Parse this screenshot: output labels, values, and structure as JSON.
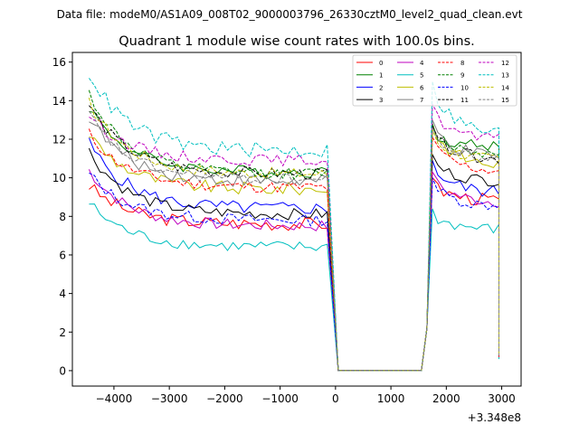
{
  "chart_data": {
    "type": "line",
    "suptitle": "Data file: modeM0/AS1A09_008T02_9000003796_26330cztM0_level2_quad_clean.evt",
    "title": "Quadrant 1 module wise count rates with 100.0s bins.",
    "xlabel": "",
    "ylabel": "",
    "x_offset_label": "+3.348e8",
    "xlim": [
      -4750,
      3350
    ],
    "ylim": [
      -0.8,
      16.5
    ],
    "x_ticks": [
      -4000,
      -3000,
      -2000,
      -1000,
      0,
      1000,
      2000,
      3000
    ],
    "x_tick_labels": [
      "−4000",
      "−3000",
      "−2000",
      "−1000",
      "0",
      "1000",
      "2000",
      "3000"
    ],
    "y_ticks": [
      0,
      2,
      4,
      6,
      8,
      10,
      12,
      14,
      16
    ],
    "y_tick_labels": [
      "0",
      "2",
      "4",
      "6",
      "8",
      "10",
      "12",
      "14",
      "16"
    ],
    "legend_position": "top-right",
    "legend_columns": 4,
    "x_segments": {
      "before_gap_start": -4450,
      "before_gap_step": 100,
      "before_gap_count": 44,
      "gap_x": [
        50,
        1550
      ],
      "after_gap_start": 1650,
      "after_gap_step": 100,
      "after_gap_count": 14,
      "last_x": 2950
    },
    "series": [
      {
        "name": "0",
        "color": "#ff0000",
        "dash": false,
        "base": 7.6,
        "start": 9.6,
        "peak": 9.6,
        "post": 8.8,
        "amp": 0.35,
        "last": 0.7
      },
      {
        "name": "1",
        "color": "#008000",
        "dash": false,
        "base": 10.3,
        "start": 13.7,
        "peak": 12.3,
        "post": 11.6,
        "amp": 0.3,
        "last": 0.8
      },
      {
        "name": "2",
        "color": "#0000ff",
        "dash": false,
        "base": 8.4,
        "start": 11.8,
        "peak": 10.5,
        "post": 9.2,
        "amp": 0.35,
        "last": 0.7
      },
      {
        "name": "3",
        "color": "#000000",
        "dash": false,
        "base": 8.1,
        "start": 11.4,
        "peak": 10.8,
        "post": 9.8,
        "amp": 0.3,
        "last": 0.8
      },
      {
        "name": "4",
        "color": "#bf00bf",
        "dash": false,
        "base": 7.5,
        "start": 10.4,
        "peak": 9.9,
        "post": 8.7,
        "amp": 0.3,
        "last": 0.7
      },
      {
        "name": "5",
        "color": "#00bfbf",
        "dash": false,
        "base": 6.4,
        "start": 8.7,
        "peak": 8.0,
        "post": 7.3,
        "amp": 0.3,
        "last": 0.6
      },
      {
        "name": "6",
        "color": "#bfbf00",
        "dash": false,
        "base": 9.4,
        "start": 12.3,
        "peak": 12.4,
        "post": 10.6,
        "amp": 0.35,
        "last": 0.8
      },
      {
        "name": "7",
        "color": "#808080",
        "dash": false,
        "base": 9.8,
        "start": 13.2,
        "peak": 12.6,
        "post": 11.0,
        "amp": 0.35,
        "last": 0.8
      },
      {
        "name": "8",
        "color": "#ff0000",
        "dash": true,
        "base": 9.5,
        "start": 12.3,
        "peak": 11.7,
        "post": 10.3,
        "amp": 0.3,
        "last": 0.7
      },
      {
        "name": "9",
        "color": "#008000",
        "dash": true,
        "base": 10.2,
        "start": 14.4,
        "peak": 12.4,
        "post": 11.2,
        "amp": 0.3,
        "last": 0.8
      },
      {
        "name": "10",
        "color": "#0000ff",
        "dash": true,
        "base": 7.8,
        "start": 10.2,
        "peak": 9.6,
        "post": 8.5,
        "amp": 0.3,
        "last": 0.7
      },
      {
        "name": "11",
        "color": "#000000",
        "dash": true,
        "base": 10.2,
        "start": 13.8,
        "peak": 12.3,
        "post": 10.9,
        "amp": 0.3,
        "last": 0.8
      },
      {
        "name": "12",
        "color": "#bf00bf",
        "dash": true,
        "base": 10.9,
        "start": 13.3,
        "peak": 13.4,
        "post": 11.9,
        "amp": 0.3,
        "last": 0.9
      },
      {
        "name": "13",
        "color": "#00bfbf",
        "dash": true,
        "base": 11.4,
        "start": 15.5,
        "peak": 14.6,
        "post": 12.2,
        "amp": 0.4,
        "last": 0.9
      },
      {
        "name": "14",
        "color": "#bfbf00",
        "dash": true,
        "base": 10.2,
        "start": 13.9,
        "peak": 12.1,
        "post": 10.9,
        "amp": 0.3,
        "last": 0.8
      },
      {
        "name": "15",
        "color": "#808080",
        "dash": true,
        "base": 9.9,
        "start": 13.3,
        "peak": 12.2,
        "post": 10.9,
        "amp": 0.3,
        "last": 0.8
      }
    ]
  }
}
